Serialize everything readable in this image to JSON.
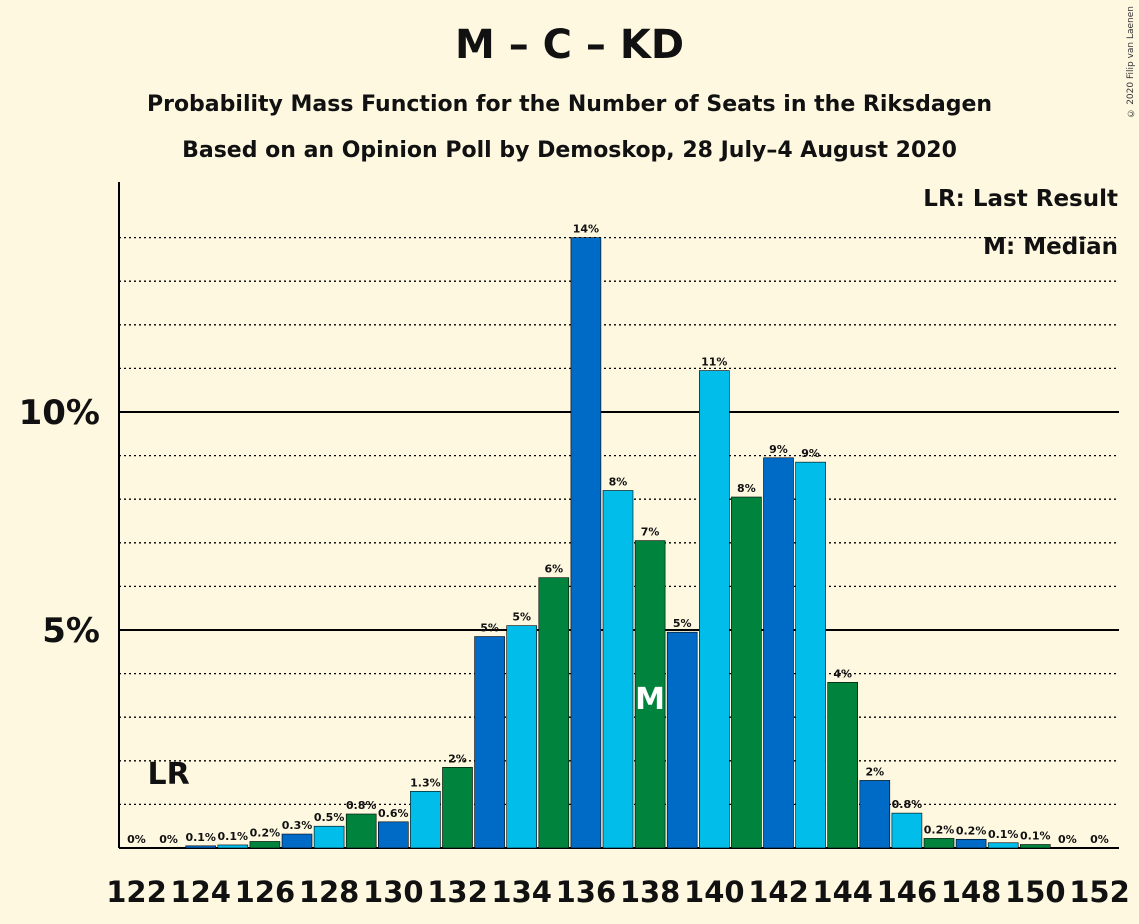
{
  "title": "M – C – KD",
  "subtitle": "Probability Mass Function for the Number of Seats in the Riksdagen",
  "subtitle2": "Based on an Opinion Poll by Demoskop, 28 July–4 August 2020",
  "copyright": "© 2020 Filip van Laenen",
  "legend": {
    "last_result": "LR: Last Result",
    "median": "M: Median"
  },
  "markers": {
    "last_result_label": "LR",
    "last_result_seat": 123,
    "median_label": "M",
    "median_seat": 138
  },
  "colors": {
    "background": "#fef8e1",
    "green": "#00843d",
    "blue": "#006ac7",
    "cyan": "#00bde9",
    "text": "#111111"
  },
  "chart_data": {
    "type": "bar",
    "x": [
      122,
      123,
      124,
      125,
      126,
      127,
      128,
      129,
      130,
      131,
      132,
      133,
      134,
      135,
      136,
      137,
      138,
      139,
      140,
      141,
      142,
      143,
      144,
      145,
      146,
      147,
      148,
      149,
      150,
      151,
      152
    ],
    "values": [
      0,
      0,
      0.05,
      0.07,
      0.15,
      0.32,
      0.5,
      0.78,
      0.6,
      1.3,
      1.85,
      4.85,
      5.1,
      6.2,
      14.0,
      8.2,
      7.05,
      4.95,
      10.95,
      8.05,
      8.95,
      8.85,
      3.8,
      1.55,
      0.8,
      0.22,
      0.2,
      0.12,
      0.08,
      0,
      0
    ],
    "value_labels": [
      "0%",
      "0%",
      "0.1%",
      "0.1%",
      "0.2%",
      "0.3%",
      "0.5%",
      "0.8%",
      "0.6%",
      "1.3%",
      "2%",
      "5%",
      "5%",
      "6%",
      "14%",
      "8%",
      "7%",
      "5%",
      "11%",
      "8%",
      "9%",
      "9%",
      "4%",
      "2%",
      "0.8%",
      "0.2%",
      "0.2%",
      "0.1%",
      "0.1%",
      "0%",
      "0%"
    ],
    "bar_colors": [
      "cyan",
      "green",
      "blue",
      "cyan",
      "green",
      "blue",
      "cyan",
      "green",
      "blue",
      "cyan",
      "green",
      "blue",
      "cyan",
      "green",
      "blue",
      "cyan",
      "green",
      "blue",
      "cyan",
      "green",
      "blue",
      "cyan",
      "green",
      "blue",
      "cyan",
      "green",
      "blue",
      "cyan",
      "green",
      "blue",
      "cyan"
    ],
    "x_tick_labels": [
      "122",
      "124",
      "126",
      "128",
      "130",
      "132",
      "134",
      "136",
      "138",
      "140",
      "142",
      "144",
      "146",
      "148",
      "150",
      "152"
    ],
    "y_tick_labels": [
      "5%",
      "10%"
    ],
    "y_ticks": [
      5,
      10
    ],
    "ylim": [
      0,
      15.2
    ],
    "grid": "dotted minor lines every 1%, solid lines at 5% and 10%"
  }
}
